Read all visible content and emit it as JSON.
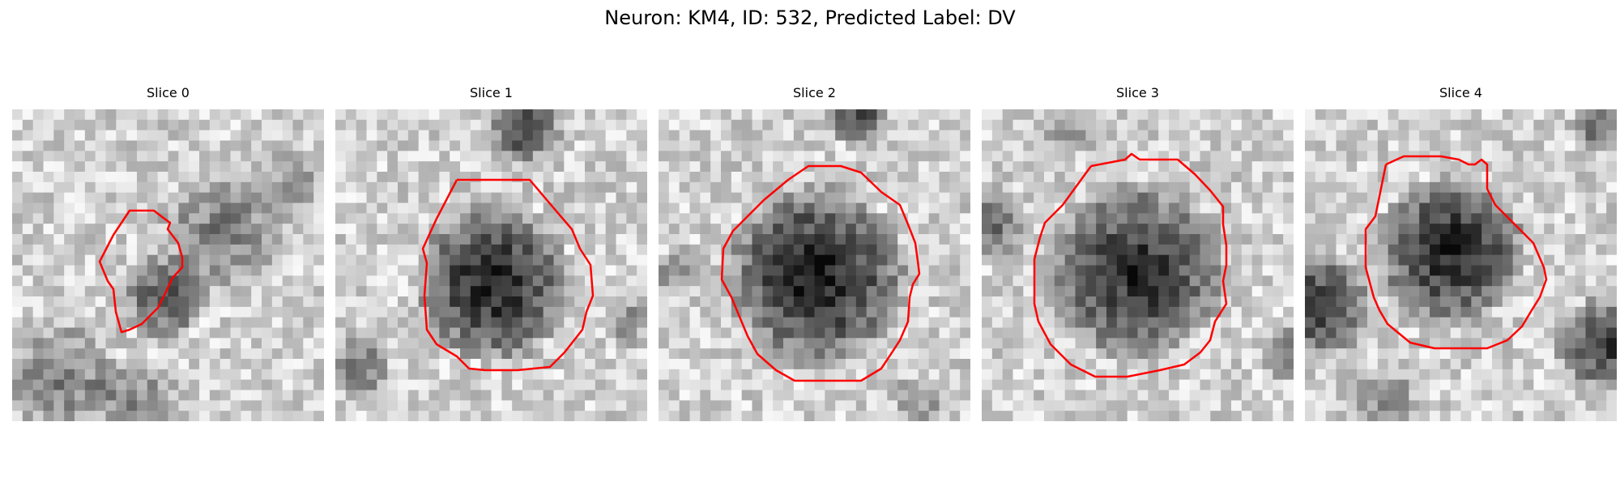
{
  "figure": {
    "title": "Neuron: KM4, ID: 532, Predicted Label: DV"
  },
  "panels": [
    {
      "title": "Slice 0"
    },
    {
      "title": "Slice 1"
    },
    {
      "title": "Slice 2"
    },
    {
      "title": "Slice 3"
    },
    {
      "title": "Slice 4"
    }
  ],
  "colors": {
    "contour": "#ff0000",
    "background": "#ffffff"
  }
}
